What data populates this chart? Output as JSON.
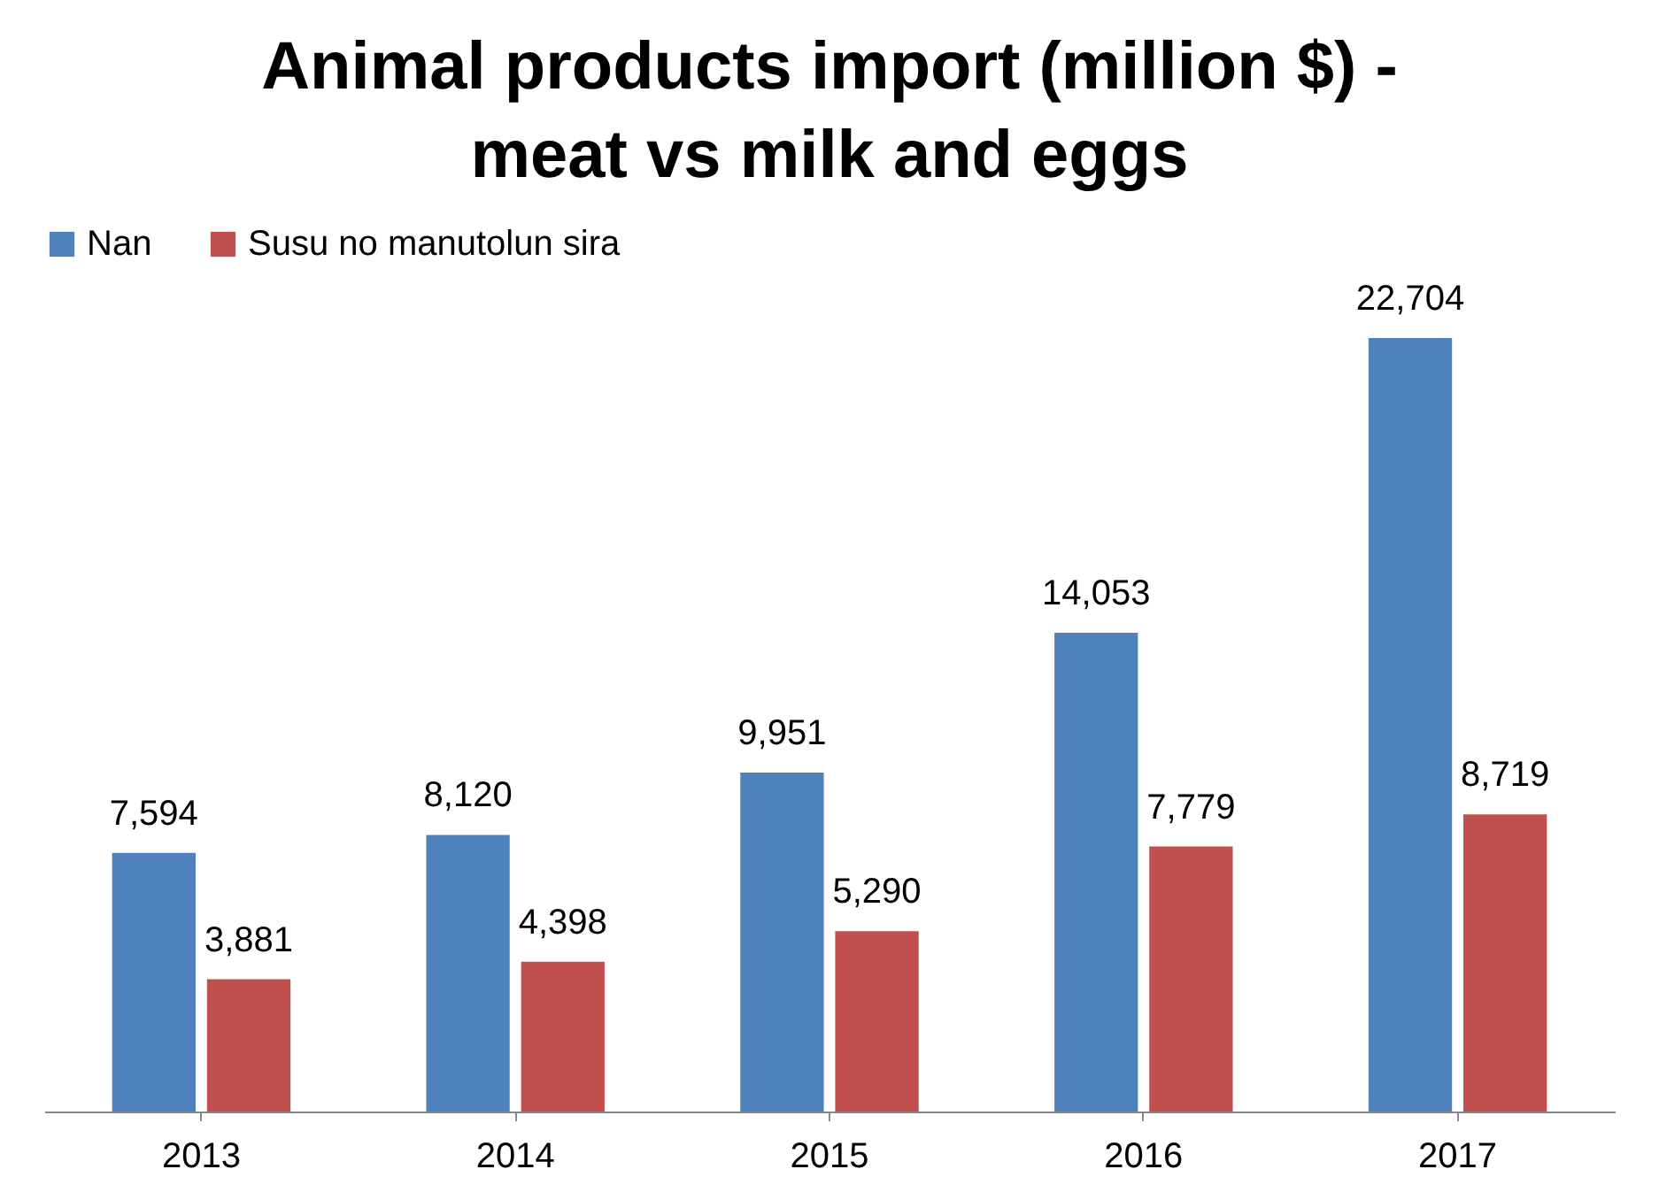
{
  "chart_data": {
    "type": "bar",
    "title": "Animal products import  (million $) -\nmeat vs milk and eggs",
    "categories": [
      "2013",
      "2014",
      "2015",
      "2016",
      "2017"
    ],
    "series": [
      {
        "name": "Nan",
        "color": "#4f81bd",
        "values": [
          7594,
          8120,
          9951,
          14053,
          22704
        ],
        "value_labels": [
          "7,594",
          "8,120",
          "9,951",
          "14,053",
          "22,704"
        ]
      },
      {
        "name": "Susu no manutolun sira",
        "color": "#c0504d",
        "values": [
          3881,
          4398,
          5290,
          7779,
          8719
        ],
        "value_labels": [
          "3,881",
          "4,398",
          "5,290",
          "7,779",
          "8,719"
        ]
      }
    ],
    "legend": "top",
    "grid": false,
    "tick_labels": "x"
  }
}
